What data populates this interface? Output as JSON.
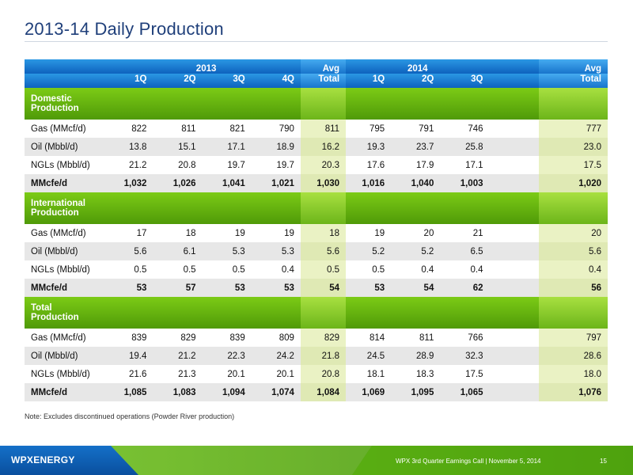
{
  "title": "2013-14 Daily Production",
  "table": {
    "header": {
      "year_2013": "2013",
      "year_2014": "2014",
      "avg_label": "Avg",
      "total_label": "Total",
      "quarters_2013": [
        "1Q",
        "2Q",
        "3Q",
        "4Q"
      ],
      "quarters_2014": [
        "1Q",
        "2Q",
        "3Q"
      ]
    },
    "sections": [
      {
        "title_line1": "Domestic",
        "title_line2": "Production",
        "rows": [
          {
            "label": "Gas (MMcf/d)",
            "q2013": [
              "822",
              "811",
              "821",
              "790"
            ],
            "avg2013": "811",
            "q2014": [
              "795",
              "791",
              "746"
            ],
            "avg2014": "777"
          },
          {
            "label": "Oil (Mbbl/d)",
            "q2013": [
              "13.8",
              "15.1",
              "17.1",
              "18.9"
            ],
            "avg2013": "16.2",
            "q2014": [
              "19.3",
              "23.7",
              "25.8"
            ],
            "avg2014": "23.0"
          },
          {
            "label": "NGLs (Mbbl/d)",
            "q2013": [
              "21.2",
              "20.8",
              "19.7",
              "19.7"
            ],
            "avg2013": "20.3",
            "q2014": [
              "17.6",
              "17.9",
              "17.1"
            ],
            "avg2014": "17.5"
          },
          {
            "label": "MMcfe/d",
            "q2013": [
              "1,032",
              "1,026",
              "1,041",
              "1,021"
            ],
            "avg2013": "1,030",
            "q2014": [
              "1,016",
              "1,040",
              "1,003"
            ],
            "avg2014": "1,020"
          }
        ]
      },
      {
        "title_line1": "International",
        "title_line2": "Production",
        "rows": [
          {
            "label": "Gas (MMcf/d)",
            "q2013": [
              "17",
              "18",
              "19",
              "19"
            ],
            "avg2013": "18",
            "q2014": [
              "19",
              "20",
              "21"
            ],
            "avg2014": "20"
          },
          {
            "label": "Oil (Mbbl/d)",
            "q2013": [
              "5.6",
              "6.1",
              "5.3",
              "5.3"
            ],
            "avg2013": "5.6",
            "q2014": [
              "5.2",
              "5.2",
              "6.5"
            ],
            "avg2014": "5.6"
          },
          {
            "label": "NGLs (Mbbl/d)",
            "q2013": [
              "0.5",
              "0.5",
              "0.5",
              "0.4"
            ],
            "avg2013": "0.5",
            "q2014": [
              "0.5",
              "0.4",
              "0.4"
            ],
            "avg2014": "0.4"
          },
          {
            "label": "MMcfe/d",
            "q2013": [
              "53",
              "57",
              "53",
              "53"
            ],
            "avg2013": "54",
            "q2014": [
              "53",
              "54",
              "62"
            ],
            "avg2014": "56"
          }
        ]
      },
      {
        "title_line1": "Total",
        "title_line2": "Production",
        "rows": [
          {
            "label": "Gas (MMcf/d)",
            "q2013": [
              "839",
              "829",
              "839",
              "809"
            ],
            "avg2013": "829",
            "q2014": [
              "814",
              "811",
              "766"
            ],
            "avg2014": "797"
          },
          {
            "label": "Oil (Mbbl/d)",
            "q2013": [
              "19.4",
              "21.2",
              "22.3",
              "24.2"
            ],
            "avg2013": "21.8",
            "q2014": [
              "24.5",
              "28.9",
              "32.3"
            ],
            "avg2014": "28.6"
          },
          {
            "label": "NGLs (Mbbl/d)",
            "q2013": [
              "21.6",
              "21.3",
              "20.1",
              "20.1"
            ],
            "avg2013": "20.8",
            "q2014": [
              "18.1",
              "18.3",
              "17.5"
            ],
            "avg2014": "18.0"
          },
          {
            "label": "MMcfe/d",
            "q2013": [
              "1,085",
              "1,083",
              "1,094",
              "1,074"
            ],
            "avg2013": "1,084",
            "q2014": [
              "1,069",
              "1,095",
              "1,065"
            ],
            "avg2014": "1,076"
          }
        ]
      }
    ]
  },
  "note": "Note: Excludes discontinued operations (Powder River production)",
  "footer": {
    "logo_text": "WPXENERGY",
    "event": "WPX 3rd Quarter Earnings Call  |  November 5, 2014",
    "page_number": "15"
  },
  "colors": {
    "header_blue": "#0e62be",
    "section_green": "#4f9a08",
    "avg_highlight": "#eaf2c4",
    "title_navy": "#1f3f7a"
  }
}
